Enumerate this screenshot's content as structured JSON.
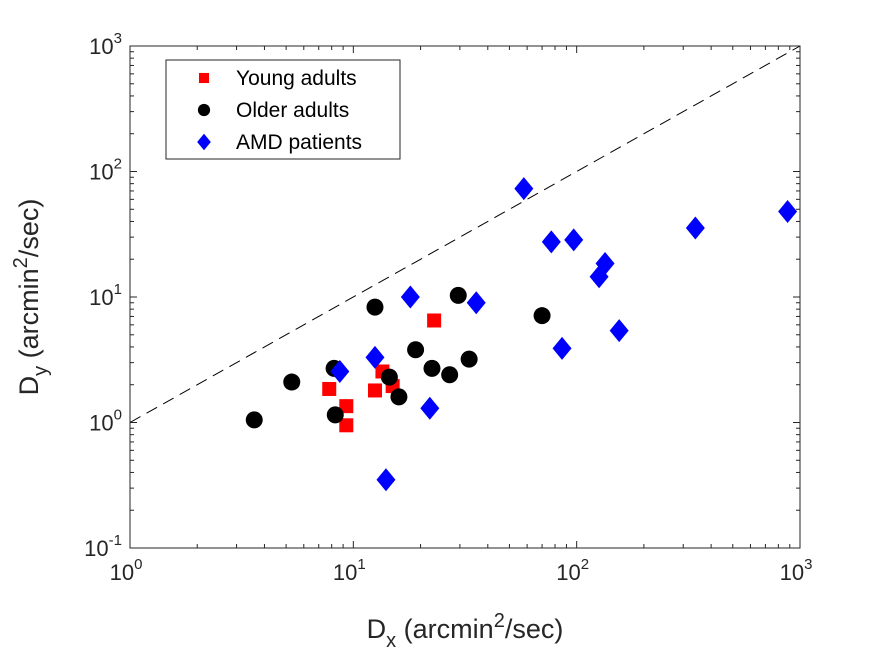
{
  "chart_data": {
    "type": "scatter",
    "x_scale": "log",
    "y_scale": "log",
    "xlim": [
      1,
      1000
    ],
    "ylim": [
      0.1,
      1000
    ],
    "grid": false,
    "legend_position": "top-left",
    "x_ticks": [
      {
        "base": "10",
        "exp": "0",
        "value": 1
      },
      {
        "base": "10",
        "exp": "1",
        "value": 10
      },
      {
        "base": "10",
        "exp": "2",
        "value": 100
      },
      {
        "base": "10",
        "exp": "3",
        "value": 1000
      }
    ],
    "y_ticks": [
      {
        "base": "10",
        "exp": "-1",
        "value": 0.1
      },
      {
        "base": "10",
        "exp": "0",
        "value": 1
      },
      {
        "base": "10",
        "exp": "1",
        "value": 10
      },
      {
        "base": "10",
        "exp": "2",
        "value": 100
      },
      {
        "base": "10",
        "exp": "3",
        "value": 1000
      }
    ],
    "xlabel": {
      "main": "D",
      "sub": "x",
      "rest_before_sup": " (arcmin",
      "sup": "2",
      "rest_after_sup": "/sec)"
    },
    "ylabel": {
      "main": "D",
      "sub": "y",
      "rest_before_sup": " (arcmin",
      "sup": "2",
      "rest_after_sup": "/sec)"
    },
    "reference_line": {
      "style": "dashed",
      "color": "#000000",
      "x": [
        1,
        1000
      ],
      "y": [
        1,
        1000
      ]
    },
    "series": [
      {
        "name": "Young adults",
        "marker": "square",
        "color": "#ff0000",
        "points": [
          {
            "x": 7.8,
            "y": 1.85
          },
          {
            "x": 9.3,
            "y": 1.35
          },
          {
            "x": 9.3,
            "y": 0.95
          },
          {
            "x": 12.5,
            "y": 1.8
          },
          {
            "x": 13.5,
            "y": 2.55
          },
          {
            "x": 15.0,
            "y": 1.95
          },
          {
            "x": 23.0,
            "y": 6.5
          }
        ]
      },
      {
        "name": "Older adults",
        "marker": "circle",
        "color": "#000000",
        "points": [
          {
            "x": 3.6,
            "y": 1.05
          },
          {
            "x": 5.3,
            "y": 2.1
          },
          {
            "x": 8.2,
            "y": 2.7
          },
          {
            "x": 8.3,
            "y": 1.15
          },
          {
            "x": 12.5,
            "y": 8.3
          },
          {
            "x": 14.5,
            "y": 2.3
          },
          {
            "x": 16.0,
            "y": 1.6
          },
          {
            "x": 19.0,
            "y": 3.8
          },
          {
            "x": 22.5,
            "y": 2.7
          },
          {
            "x": 27.0,
            "y": 2.4
          },
          {
            "x": 29.5,
            "y": 10.3
          },
          {
            "x": 33.0,
            "y": 3.2
          },
          {
            "x": 70.0,
            "y": 7.1
          }
        ]
      },
      {
        "name": "AMD patients",
        "marker": "diamond",
        "color": "#0000ff",
        "points": [
          {
            "x": 8.7,
            "y": 2.55
          },
          {
            "x": 12.5,
            "y": 3.3
          },
          {
            "x": 14.0,
            "y": 0.35
          },
          {
            "x": 18.0,
            "y": 10.0
          },
          {
            "x": 22.0,
            "y": 1.3
          },
          {
            "x": 35.5,
            "y": 9.0
          },
          {
            "x": 58.0,
            "y": 73.0
          },
          {
            "x": 77.0,
            "y": 27.5
          },
          {
            "x": 86.0,
            "y": 3.9
          },
          {
            "x": 97.0,
            "y": 28.5
          },
          {
            "x": 126.0,
            "y": 14.5
          },
          {
            "x": 134.0,
            "y": 18.5
          },
          {
            "x": 155.0,
            "y": 5.4
          },
          {
            "x": 340.0,
            "y": 35.5
          },
          {
            "x": 880.0,
            "y": 48.0
          }
        ]
      }
    ]
  }
}
